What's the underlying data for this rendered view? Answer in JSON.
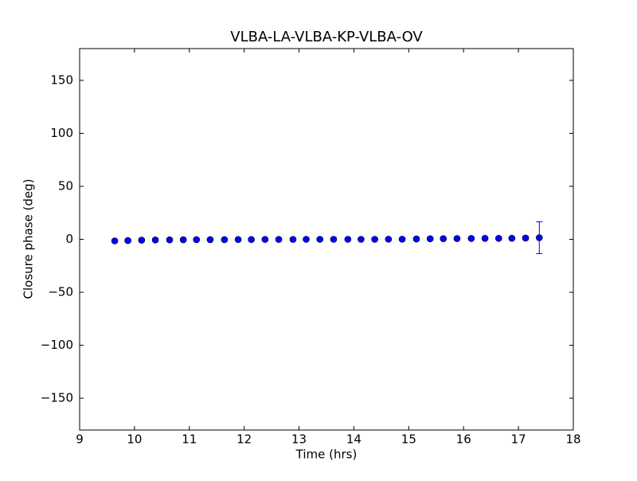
{
  "chart_data": {
    "type": "errorbar_scatter",
    "title": "VLBA-LA-VLBA-KP-VLBA-OV",
    "x_label": "Time (hrs)",
    "y_label": "Closure phase (deg)",
    "x": [
      9.64,
      9.88,
      10.13,
      10.38,
      10.64,
      10.89,
      11.13,
      11.38,
      11.64,
      11.89,
      12.13,
      12.38,
      12.63,
      12.89,
      13.13,
      13.38,
      13.63,
      13.89,
      14.13,
      14.38,
      14.63,
      14.88,
      15.14,
      15.39,
      15.63,
      15.88,
      16.14,
      16.39,
      16.64,
      16.88,
      17.13,
      17.38
    ],
    "values": [
      -1.5,
      -1.2,
      -0.8,
      -0.6,
      -0.5,
      -0.4,
      -0.3,
      -0.3,
      -0.3,
      -0.2,
      -0.2,
      -0.1,
      -0.1,
      -0.1,
      0,
      0,
      0,
      0,
      0,
      0,
      0.1,
      0.1,
      0.3,
      0.5,
      0.6,
      0.7,
      0.8,
      0.9,
      0.9,
      1.0,
      1.2,
      1.5
    ],
    "errors": [
      1,
      1,
      1,
      1,
      1,
      1,
      1,
      1,
      1,
      1,
      1,
      1,
      1,
      1,
      1,
      1,
      1,
      1,
      1,
      1,
      1,
      1,
      1,
      1,
      1,
      1,
      1,
      1,
      1,
      1,
      1.5,
      15
    ],
    "color": "#0000ff",
    "xlim": [
      9,
      18
    ],
    "xticks": [
      9,
      10,
      11,
      12,
      13,
      14,
      15,
      16,
      17,
      18
    ],
    "ylim": [
      -180,
      180
    ],
    "yticks": [
      {
        "value": -150,
        "label": "−150"
      },
      {
        "value": -100,
        "label": "−100"
      },
      {
        "value": -50,
        "label": "−50"
      },
      0,
      50,
      100,
      150
    ]
  }
}
